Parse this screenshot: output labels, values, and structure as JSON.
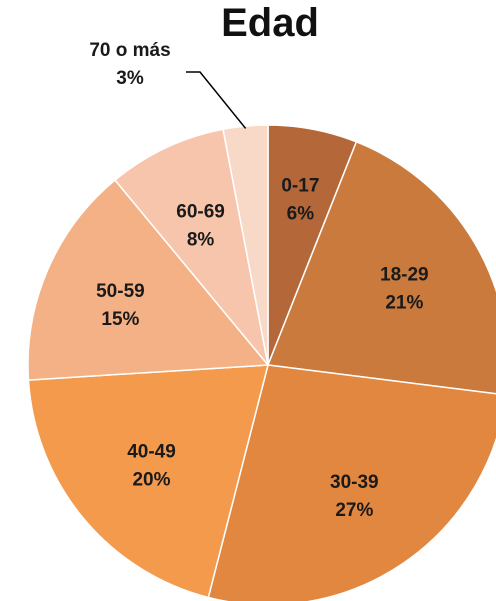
{
  "chart_data": {
    "type": "pie",
    "title": "Edad",
    "start_angle_deg": 0,
    "direction": "clockwise",
    "slices": [
      {
        "category": "0-17",
        "label": "6%",
        "value": 6,
        "color": "#b4683a"
      },
      {
        "category": "18-29",
        "label": "21%",
        "value": 21,
        "color": "#c97a3c"
      },
      {
        "category": "30-39",
        "label": "27%",
        "value": 27,
        "color": "#e2873f"
      },
      {
        "category": "40-49",
        "label": "20%",
        "value": 20,
        "color": "#f49a4c"
      },
      {
        "category": "50-59",
        "label": "15%",
        "value": 15,
        "color": "#f4b185"
      },
      {
        "category": "60-69",
        "label": "8%",
        "value": 8,
        "color": "#f7c5ab"
      },
      {
        "category": "70 o más",
        "label": "3%",
        "value": 3,
        "color": "#f8d9c8"
      }
    ]
  }
}
